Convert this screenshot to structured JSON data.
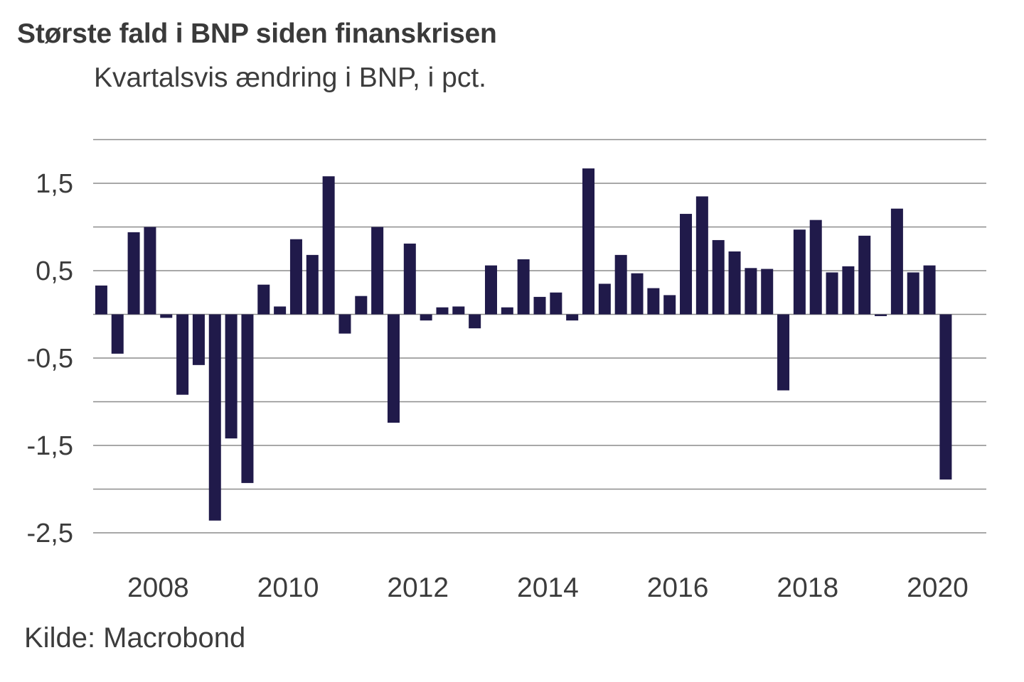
{
  "header": {
    "title": "Største fald i BNP siden finanskrisen",
    "subtitle": "Kvartalsvis ændring i BNP, i pct."
  },
  "footer": {
    "source": "Kilde: Macrobond"
  },
  "colors": {
    "bar": "#201a4a",
    "grid": "#8c8c8c",
    "text": "#3c3c3c"
  },
  "chart_data": {
    "type": "bar",
    "title": "Største fald i BNP siden finanskrisen",
    "subtitle": "Kvartalsvis ændring i BNP, i pct.",
    "xlabel": "",
    "ylabel": "Kvartalsvis ændring i BNP, i pct.",
    "source": "Kilde: Macrobond",
    "ylim": [
      -2.5,
      2.0
    ],
    "grid": true,
    "grid_step": 0.5,
    "legend": "none",
    "yticks": [
      {
        "value": 1.5,
        "label": "1,5"
      },
      {
        "value": 0.5,
        "label": "0,5"
      },
      {
        "value": -0.5,
        "label": "-0,5"
      },
      {
        "value": -1.5,
        "label": "-1,5"
      },
      {
        "value": -2.5,
        "label": "-2,5"
      }
    ],
    "xlim_quarters": [
      -0.5,
      54.5
    ],
    "xticks": [
      {
        "quarter_index": 3.5,
        "label": "2008"
      },
      {
        "quarter_index": 11.5,
        "label": "2010"
      },
      {
        "quarter_index": 19.5,
        "label": "2012"
      },
      {
        "quarter_index": 27.5,
        "label": "2014"
      },
      {
        "quarter_index": 35.5,
        "label": "2016"
      },
      {
        "quarter_index": 43.5,
        "label": "2018"
      },
      {
        "quarter_index": 51.5,
        "label": "2020"
      }
    ],
    "categories": [
      "2007Q3",
      "2007Q4",
      "2008Q1",
      "2008Q2",
      "2008Q3",
      "2008Q4",
      "2009Q1",
      "2009Q2",
      "2009Q3",
      "2009Q4",
      "2010Q1",
      "2010Q2",
      "2010Q3",
      "2010Q4",
      "2011Q1",
      "2011Q2",
      "2011Q3",
      "2011Q4",
      "2012Q1",
      "2012Q2",
      "2012Q3",
      "2012Q4",
      "2013Q1",
      "2013Q2",
      "2013Q3",
      "2013Q4",
      "2014Q1",
      "2014Q2",
      "2014Q3",
      "2014Q4",
      "2015Q1",
      "2015Q2",
      "2015Q3",
      "2015Q4",
      "2016Q1",
      "2016Q2",
      "2016Q3",
      "2016Q4",
      "2017Q1",
      "2017Q2",
      "2017Q3",
      "2017Q4",
      "2018Q1",
      "2018Q2",
      "2018Q3",
      "2018Q4",
      "2019Q1",
      "2019Q2",
      "2019Q3",
      "2019Q4",
      "2020Q1",
      "2020Q2",
      "2020Q3"
    ],
    "series": [
      {
        "name": "BNP, kvartalsvis ændring (pct.)",
        "values": [
          0.33,
          -0.45,
          0.94,
          1.0,
          -0.04,
          -0.92,
          -0.58,
          -2.36,
          -1.42,
          -1.93,
          0.34,
          0.09,
          0.86,
          0.68,
          1.58,
          -0.22,
          0.21,
          1.0,
          -1.24,
          0.81,
          -0.07,
          0.08,
          0.09,
          -0.16,
          0.56,
          0.08,
          0.63,
          0.2,
          0.25,
          -0.07,
          1.67,
          0.35,
          0.68,
          0.47,
          0.3,
          0.22,
          1.15,
          1.35,
          0.85,
          0.72,
          0.53,
          0.52,
          -0.87,
          0.97,
          1.08,
          0.48,
          0.55,
          0.9,
          -0.02,
          1.21,
          0.48,
          0.56,
          -1.89
        ]
      }
    ]
  }
}
